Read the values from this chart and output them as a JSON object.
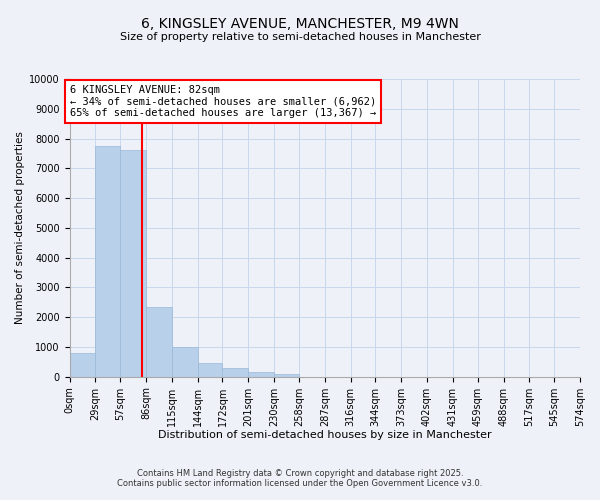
{
  "title": "6, KINGSLEY AVENUE, MANCHESTER, M9 4WN",
  "subtitle": "Size of property relative to semi-detached houses in Manchester",
  "xlabel": "Distribution of semi-detached houses by size in Manchester",
  "ylabel": "Number of semi-detached properties",
  "bar_color": "#b8d0ea",
  "bar_edge_color": "#9ab8d8",
  "grid_color": "#c8d8ec",
  "property_line_x": 82,
  "property_line_color": "red",
  "annotation_text": "6 KINGSLEY AVENUE: 82sqm\n← 34% of semi-detached houses are smaller (6,962)\n65% of semi-detached houses are larger (13,367) →",
  "annotation_box_color": "white",
  "annotation_box_edge_color": "red",
  "bin_edges": [
    0,
    29,
    57,
    86,
    115,
    144,
    172,
    201,
    230,
    258,
    287,
    316,
    344,
    373,
    402,
    431,
    459,
    488,
    517,
    545,
    574
  ],
  "bar_heights": [
    800,
    7750,
    7600,
    2350,
    1000,
    475,
    290,
    165,
    100,
    0,
    0,
    0,
    0,
    0,
    0,
    0,
    0,
    0,
    0,
    0
  ],
  "ylim": [
    0,
    10000
  ],
  "yticks": [
    0,
    1000,
    2000,
    3000,
    4000,
    5000,
    6000,
    7000,
    8000,
    9000,
    10000
  ],
  "xtick_labels": [
    "0sqm",
    "29sqm",
    "57sqm",
    "86sqm",
    "115sqm",
    "144sqm",
    "172sqm",
    "201sqm",
    "230sqm",
    "258sqm",
    "287sqm",
    "316sqm",
    "344sqm",
    "373sqm",
    "402sqm",
    "431sqm",
    "459sqm",
    "488sqm",
    "517sqm",
    "545sqm",
    "574sqm"
  ],
  "footer1": "Contains HM Land Registry data © Crown copyright and database right 2025.",
  "footer2": "Contains public sector information licensed under the Open Government Licence v3.0.",
  "background_color": "#eef2f8",
  "plot_background_color": "#eef2f8",
  "title_fontsize": 10,
  "subtitle_fontsize": 8,
  "xlabel_fontsize": 8,
  "ylabel_fontsize": 7.5,
  "tick_fontsize": 7,
  "annotation_fontsize": 7.5,
  "footer_fontsize": 6
}
